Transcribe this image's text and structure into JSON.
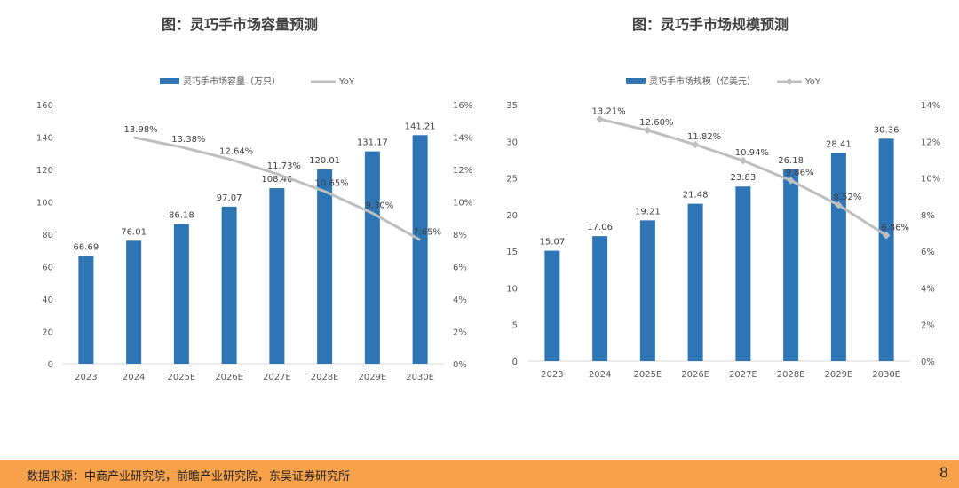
{
  "chart_data": [
    {
      "type": "bar",
      "title": "图：灵巧手市场容量预测",
      "categories": [
        "2023",
        "2024",
        "2025E",
        "2026E",
        "2027E",
        "2028E",
        "2029E",
        "2030E"
      ],
      "series": [
        {
          "name": "灵巧手市场容量（万只）",
          "type": "bar",
          "axis": "left",
          "color": "#2E75B6",
          "values": [
            66.69,
            76.01,
            86.18,
            97.07,
            108.46,
            120.01,
            131.17,
            141.21
          ],
          "labels": [
            "66.69",
            "76.01",
            "86.18",
            "97.07",
            "108.46",
            "120.01",
            "131.17",
            "141.21"
          ]
        },
        {
          "name": "YoY",
          "type": "line",
          "axis": "right",
          "color": "#BFBFBF",
          "values": [
            null,
            13.98,
            13.38,
            12.64,
            11.73,
            10.65,
            9.3,
            7.65
          ],
          "labels": [
            "",
            "13.98%",
            "13.38%",
            "12.64%",
            "11.73%",
            "10.65%",
            "9.30%",
            "7.65%"
          ]
        }
      ],
      "y_left": {
        "min": 0,
        "max": 160,
        "step": 20,
        "ticks": [
          "0",
          "20",
          "40",
          "60",
          "80",
          "100",
          "120",
          "140",
          "160"
        ]
      },
      "y_right": {
        "min": 0,
        "max": 16,
        "step": 2,
        "ticks": [
          "0%",
          "2%",
          "4%",
          "6%",
          "8%",
          "10%",
          "12%",
          "14%",
          "16%"
        ]
      },
      "legend_position": "top"
    },
    {
      "type": "bar",
      "title": "图：灵巧手市场规模预测",
      "categories": [
        "2023",
        "2024",
        "2025E",
        "2026E",
        "2027E",
        "2028E",
        "2029E",
        "2030E"
      ],
      "series": [
        {
          "name": "灵巧手市场规模（亿美元）",
          "type": "bar",
          "axis": "left",
          "color": "#2E75B6",
          "values": [
            15.07,
            17.06,
            19.21,
            21.48,
            23.83,
            26.18,
            28.41,
            30.36
          ],
          "labels": [
            "15.07",
            "17.06",
            "19.21",
            "21.48",
            "23.83",
            "26.18",
            "28.41",
            "30.36"
          ]
        },
        {
          "name": "YoY",
          "type": "line",
          "axis": "right",
          "color": "#BFBFBF",
          "values": [
            null,
            13.21,
            12.6,
            11.82,
            10.94,
            9.86,
            8.52,
            6.86
          ],
          "labels": [
            "",
            "13.21%",
            "12.60%",
            "11.82%",
            "10.94%",
            "9.86%",
            "8.52%",
            "6.86%"
          ]
        }
      ],
      "y_left": {
        "min": 0,
        "max": 35,
        "step": 5,
        "ticks": [
          "0",
          "5",
          "10",
          "15",
          "20",
          "25",
          "30",
          "35"
        ]
      },
      "y_right": {
        "min": 0,
        "max": 14,
        "step": 2,
        "ticks": [
          "0%",
          "2%",
          "4%",
          "6%",
          "8%",
          "10%",
          "12%",
          "14%"
        ]
      },
      "legend_position": "top"
    }
  ],
  "footer": {
    "source": "数据来源：中商产业研究院，前瞻产业研究院，东吴证券研究所",
    "page_number": "8"
  }
}
